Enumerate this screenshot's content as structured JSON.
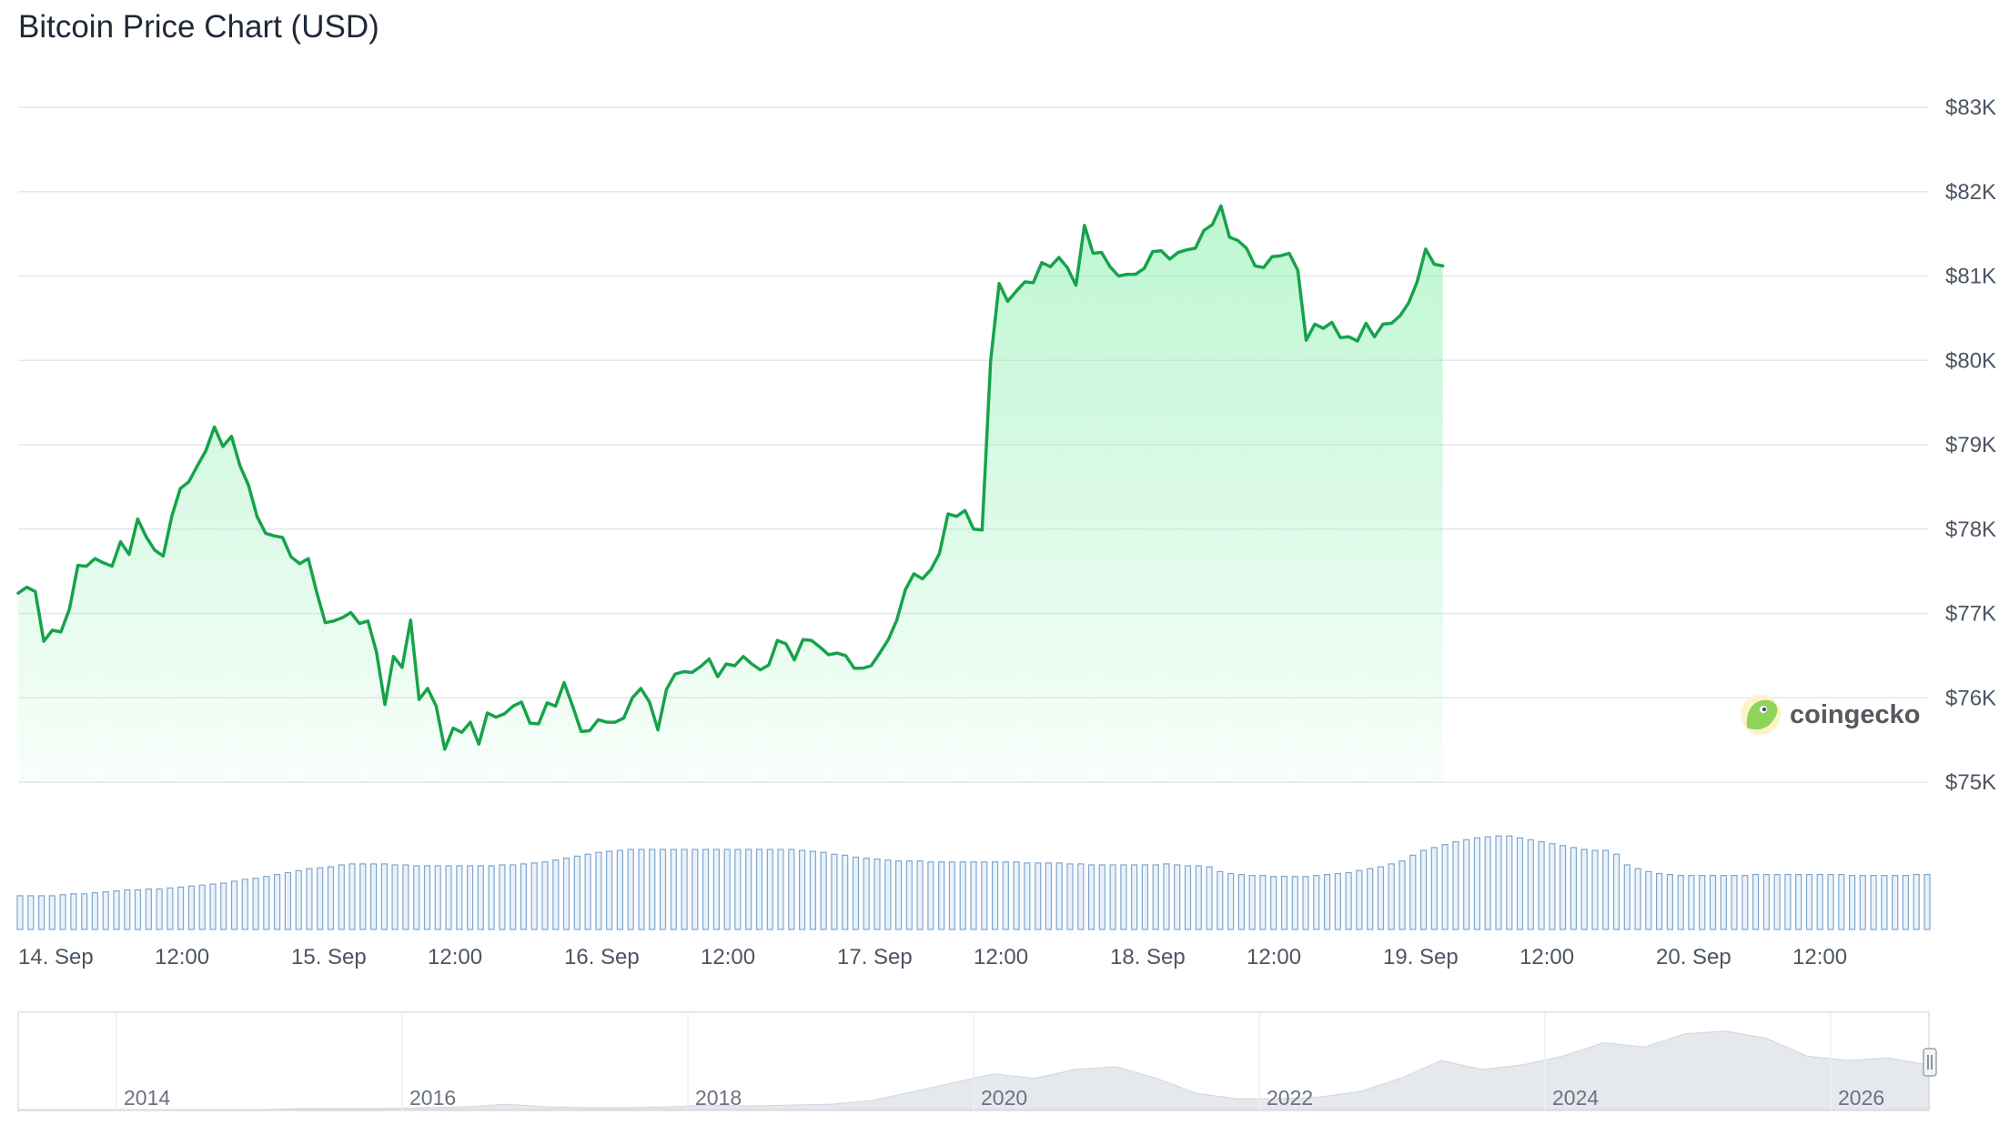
{
  "title": "Bitcoin Price Chart (USD)",
  "brand": "coingecko",
  "colors": {
    "line": "#16a34a",
    "fill": "#86efac",
    "volume": "#7ea7cf",
    "grid": "#e5e7eb",
    "navigator_area": "#e5e9ed"
  },
  "chart_data": {
    "type": "line",
    "title": "Bitcoin Price Chart (USD)",
    "xlabel": "",
    "ylabel": "",
    "ylim": [
      75000,
      83000
    ],
    "yticks": [
      75000,
      76000,
      77000,
      78000,
      79000,
      80000,
      81000,
      82000,
      83000
    ],
    "ytick_labels": [
      "$75K",
      "$76K",
      "$77K",
      "$78K",
      "$79K",
      "$80K",
      "$81K",
      "$82K",
      "$83K"
    ],
    "xlim_days": [
      0,
      7
    ],
    "xtick_labels": [
      "14. Sep",
      "12:00",
      "15. Sep",
      "12:00",
      "16. Sep",
      "12:00",
      "17. Sep",
      "12:00",
      "18. Sep",
      "12:00",
      "19. Sep",
      "12:00",
      "20. Sep",
      "12:00"
    ],
    "grid": true,
    "series": [
      {
        "type": "line",
        "x_start": "14. Sep",
        "x_interval_hours": 0.75,
        "values": [
          77240,
          77310,
          77260,
          76670,
          76800,
          76780,
          77050,
          77570,
          77560,
          77650,
          77600,
          77560,
          77850,
          77700,
          78120,
          77910,
          77750,
          77680,
          78150,
          78480,
          78560,
          78750,
          78930,
          79210,
          78980,
          79100,
          78750,
          78520,
          78150,
          77950,
          77920,
          77900,
          77670,
          77590,
          77650,
          77250,
          76890,
          76910,
          76950,
          77010,
          76880,
          76910,
          76540,
          75920,
          76490,
          76360,
          76920,
          75980,
          76110,
          75900,
          75390,
          75640,
          75590,
          75710,
          75450,
          75820,
          75770,
          75810,
          75900,
          75950,
          75700,
          75690,
          75940,
          75900,
          76180,
          75900,
          75600,
          75610,
          75740,
          75710,
          75710,
          75760,
          76000,
          76110,
          75950,
          75620,
          76100,
          76280,
          76310,
          76300,
          76370,
          76460,
          76250,
          76400,
          76380,
          76490,
          76400,
          76330,
          76390,
          76680,
          76640,
          76450,
          76690,
          76680,
          76600,
          76510,
          76530,
          76500,
          76350,
          76350,
          76380,
          76530,
          76690,
          76920,
          77280,
          77470,
          77410,
          77520,
          77710,
          78180,
          78150,
          78220,
          78000,
          77990,
          80000,
          80910,
          80700,
          80820,
          80930,
          80920,
          81160,
          81110,
          81220,
          81100,
          80890,
          81600,
          81270,
          81280,
          81110,
          81000,
          81020,
          81020,
          81090,
          81290,
          81300,
          81200,
          81280,
          81310,
          81330,
          81540,
          81610,
          81830,
          81460,
          81420,
          81330,
          81120,
          81100,
          81230,
          81240,
          81270,
          81070,
          80240,
          80430,
          80380,
          80450,
          80270,
          80280,
          80230,
          80440,
          80280,
          80430,
          80440,
          80530,
          80680,
          80930,
          81320,
          81140,
          81120
        ]
      },
      {
        "type": "volume",
        "name": "",
        "values": [
          0.35,
          0.35,
          0.35,
          0.35,
          0.36,
          0.37,
          0.37,
          0.38,
          0.39,
          0.4,
          0.41,
          0.41,
          0.42,
          0.42,
          0.43,
          0.44,
          0.45,
          0.46,
          0.47,
          0.48,
          0.5,
          0.52,
          0.53,
          0.55,
          0.57,
          0.59,
          0.61,
          0.63,
          0.64,
          0.65,
          0.67,
          0.68,
          0.68,
          0.68,
          0.68,
          0.67,
          0.67,
          0.66,
          0.66,
          0.66,
          0.66,
          0.66,
          0.66,
          0.66,
          0.66,
          0.67,
          0.67,
          0.68,
          0.69,
          0.7,
          0.72,
          0.74,
          0.76,
          0.78,
          0.8,
          0.81,
          0.82,
          0.83,
          0.83,
          0.83,
          0.83,
          0.83,
          0.83,
          0.83,
          0.83,
          0.83,
          0.83,
          0.83,
          0.83,
          0.83,
          0.83,
          0.83,
          0.83,
          0.82,
          0.81,
          0.8,
          0.78,
          0.77,
          0.75,
          0.74,
          0.73,
          0.72,
          0.71,
          0.71,
          0.71,
          0.7,
          0.7,
          0.7,
          0.7,
          0.7,
          0.7,
          0.7,
          0.7,
          0.7,
          0.69,
          0.69,
          0.69,
          0.69,
          0.68,
          0.68,
          0.67,
          0.67,
          0.67,
          0.67,
          0.67,
          0.67,
          0.67,
          0.68,
          0.67,
          0.66,
          0.66,
          0.65,
          0.6,
          0.58,
          0.57,
          0.56,
          0.56,
          0.55,
          0.55,
          0.55,
          0.55,
          0.56,
          0.57,
          0.58,
          0.59,
          0.61,
          0.63,
          0.65,
          0.68,
          0.71,
          0.77,
          0.82,
          0.85,
          0.88,
          0.91,
          0.93,
          0.95,
          0.96,
          0.97,
          0.97,
          0.95,
          0.93,
          0.91,
          0.89,
          0.87,
          0.85,
          0.83,
          0.82,
          0.82,
          0.78,
          0.67,
          0.63,
          0.6,
          0.58,
          0.57,
          0.56,
          0.56,
          0.56,
          0.56,
          0.56,
          0.56,
          0.56,
          0.57,
          0.57,
          0.57,
          0.57,
          0.57,
          0.57,
          0.57,
          0.57,
          0.57,
          0.56,
          0.56,
          0.56,
          0.56,
          0.56,
          0.56,
          0.57,
          0.57
        ]
      }
    ],
    "navigator": {
      "xtick_labels": [
        "2014",
        "2016",
        "2018",
        "2020",
        "2022",
        "2024",
        "2026"
      ]
    }
  }
}
